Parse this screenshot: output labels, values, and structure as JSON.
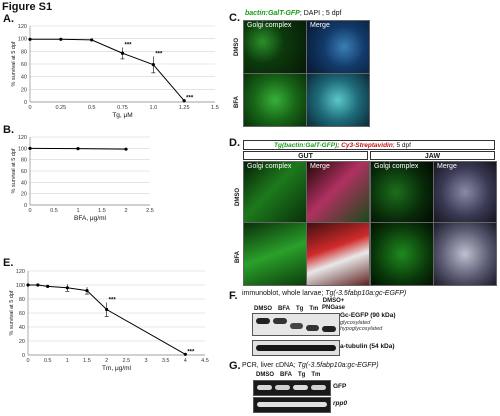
{
  "figure_title": "Figure S1",
  "panels": {
    "A": "A.",
    "B": "B.",
    "C": "C.",
    "D": "D.",
    "E": "E.",
    "F": "F.",
    "G": "G."
  },
  "panel_c": {
    "header_green": "bactin:GalT-GFP",
    "header_rest": "; DAPI ; 5 dpf",
    "col_golgi": "Golgi complex",
    "col_merge": "Merge",
    "row_dmso": "DMSO",
    "row_bfa": "BFA"
  },
  "panel_d": {
    "header_green": "Tg(bactin:GalT-GFP)",
    "header_red": "; Cy3-Streptavidin",
    "header_rest": "; 5 dpf",
    "gut": "GUT",
    "jaw": "JAW",
    "col_golgi": "Golgi complex",
    "col_merge": "Merge",
    "row_dmso": "DMSO",
    "row_bfa": "BFA"
  },
  "panel_f": {
    "title_prefix": "immunoblot, whole larvae; ",
    "title_italic": "Tg(-3.5fabp10a:gc-EGFP)",
    "dmso_pngase_1": "DMSO+",
    "dmso_pngase_2": "PNGase",
    "lanes": [
      "DMSO",
      "BFA",
      "Tg",
      "Tm"
    ],
    "band_label": "Gc-EGFP (90 kDa)",
    "glyco_1": "glycosylated",
    "glyco_2": "hypoglycosylated",
    "tubulin_label": "a-tubulin (54 kDa)"
  },
  "panel_g": {
    "title_prefix": "PCR, liver cDNA; ",
    "title_italic": "Tg(-3.5fabp10a:gc-EGFP)",
    "lanes": [
      "DMSO",
      "BFA",
      "Tg",
      "Tm"
    ],
    "gfp_label": "GFP",
    "rpp0_label": "rpp0"
  },
  "chart_data": [
    {
      "type": "line",
      "panel": "A",
      "x": [
        0,
        0.25,
        0.5,
        0.75,
        1.0,
        1.25
      ],
      "y": [
        99,
        99,
        98,
        77,
        59,
        2
      ],
      "err": [
        0,
        0,
        0,
        9,
        13,
        0
      ],
      "star_labels": [
        "",
        "",
        "",
        "***",
        "***",
        "***"
      ],
      "xlabel": "Tg, μM",
      "ylabel": "% survival at 5 dpf",
      "xlim": [
        0,
        1.5
      ],
      "ylim": [
        0,
        120
      ],
      "xticks": [
        "0",
        "0.25",
        "0.5",
        "0.75",
        "1.0",
        "1.25",
        "1.5"
      ],
      "yticks": [
        "0",
        "20",
        "40",
        "60",
        "80",
        "100",
        "120"
      ]
    },
    {
      "type": "line",
      "panel": "B",
      "x": [
        0,
        1,
        2
      ],
      "y": [
        100,
        99.5,
        98.5
      ],
      "err": [
        0,
        0,
        0
      ],
      "star_labels": [
        "",
        "",
        ""
      ],
      "xlabel": "BFA, μg/ml",
      "ylabel": "% survival at 5 dpf",
      "xlim": [
        0,
        2.5
      ],
      "ylim": [
        0,
        120
      ],
      "xticks": [
        "0",
        "0.5",
        "1",
        "1.5",
        "2",
        "2.5"
      ],
      "yticks": [
        "0",
        "20",
        "40",
        "60",
        "80",
        "100",
        "120"
      ]
    },
    {
      "type": "line",
      "panel": "E",
      "x": [
        0,
        0.25,
        0.5,
        1,
        1.5,
        2,
        4
      ],
      "y": [
        100,
        100,
        98,
        96,
        92,
        65,
        1
      ],
      "err": [
        0,
        0,
        0,
        5,
        5,
        10,
        0
      ],
      "star_labels": [
        "",
        "",
        "",
        "",
        "",
        "***",
        "***"
      ],
      "xlabel": "Tm, μg/ml",
      "ylabel": "% survival at 5 dpf",
      "xlim": [
        0,
        4.5
      ],
      "ylim": [
        0,
        120
      ],
      "xticks": [
        "0",
        "0.5",
        "1",
        "1.5",
        "2",
        "2.5",
        "3",
        "3.5",
        "4",
        "4.5"
      ],
      "yticks": [
        "0",
        "20",
        "40",
        "60",
        "80",
        "100",
        "120"
      ]
    }
  ]
}
